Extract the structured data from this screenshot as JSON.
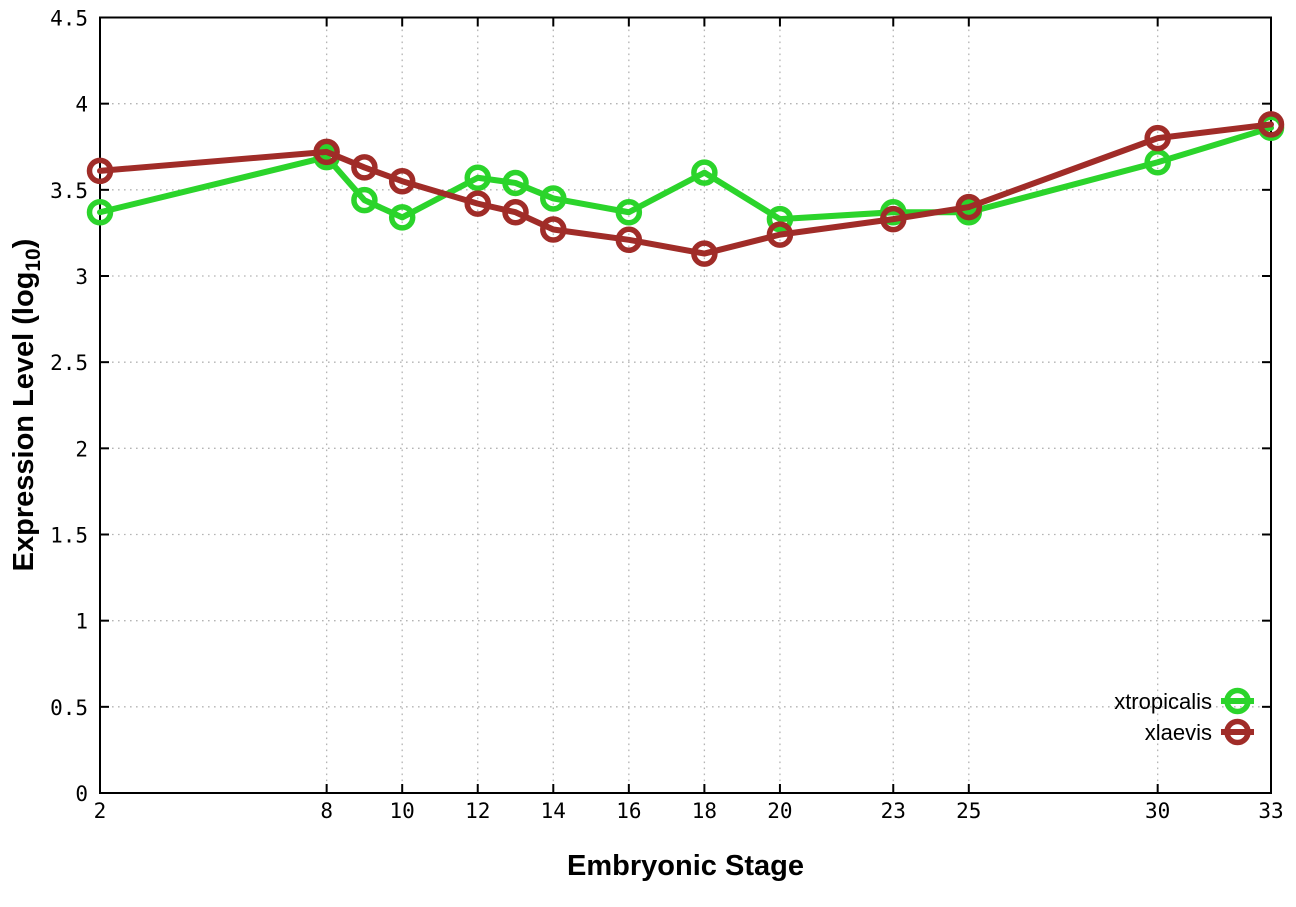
{
  "chart_data": {
    "type": "line",
    "x": [
      2,
      8,
      9,
      10,
      12,
      13,
      14,
      16,
      18,
      20,
      23,
      25,
      30,
      33
    ],
    "series": [
      {
        "name": "xtropicalis",
        "color": "#2bd42b",
        "marker": "open-circle",
        "values": [
          3.37,
          3.69,
          3.44,
          3.34,
          3.57,
          3.54,
          3.45,
          3.37,
          3.6,
          3.33,
          3.37,
          3.37,
          3.66,
          3.86
        ]
      },
      {
        "name": "xlaevis",
        "color": "#a02c28",
        "marker": "open-circle",
        "values": [
          3.61,
          3.72,
          3.63,
          3.55,
          3.42,
          3.37,
          3.27,
          3.21,
          3.13,
          3.24,
          3.33,
          3.4,
          3.8,
          3.88
        ]
      }
    ],
    "title": "",
    "xlabel": "Embryonic Stage",
    "ylabel": "Expression Level (log10)",
    "xlim": [
      2,
      33
    ],
    "ylim": [
      0,
      4.5
    ],
    "xticks": [
      2,
      8,
      10,
      12,
      14,
      16,
      18,
      20,
      23,
      25,
      30,
      33
    ],
    "yticks": [
      0,
      0.5,
      1,
      1.5,
      2,
      2.5,
      3,
      3.5,
      4,
      4.5
    ],
    "grid": true,
    "grid_style": "dotted",
    "legend_position": "bottom-right",
    "legend_entries": [
      "xtropicalis",
      "xlaevis"
    ]
  },
  "labels": {
    "xlabel": "Embryonic Stage",
    "ylabel_main": "Expression Level (log",
    "ylabel_sub": "10",
    "ylabel_close": ")"
  },
  "style": {
    "background": "#ffffff",
    "border_color": "#000000",
    "grid_color": "#b4b4b4",
    "text_color": "#000000"
  }
}
